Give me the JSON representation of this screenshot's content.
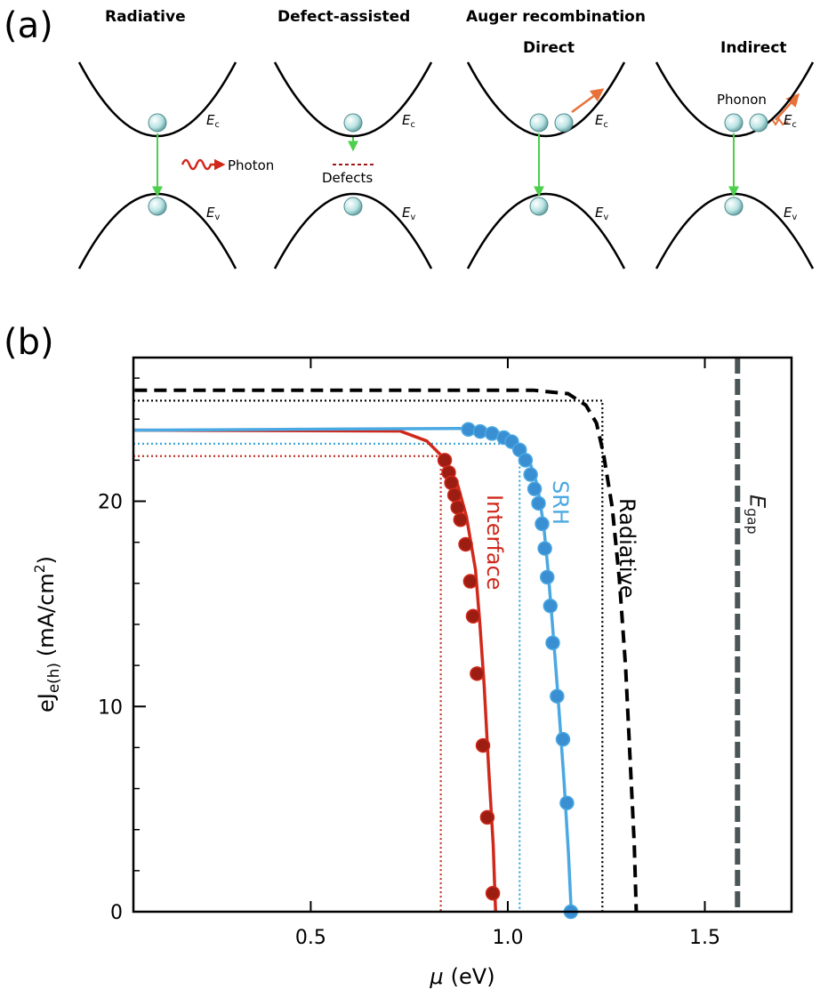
{
  "diagram": {
    "panel_label": "(a)",
    "titles": [
      {
        "text": "Radiative"
      },
      {
        "text": "Defect-assisted"
      },
      {
        "text": "Auger recombination"
      }
    ],
    "subtitles": [
      "Direct",
      "Indirect"
    ],
    "conduction": {
      "symbol": "E",
      "sub": "c"
    },
    "valence": {
      "symbol": "E",
      "sub": "v"
    },
    "photon": "Photon",
    "defects": "Defects",
    "phonon": "Phonon"
  },
  "chart_data": {
    "type": "line",
    "panel_label": "(b)",
    "x_label": {
      "symbol": "μ",
      "unit": "(eV)"
    },
    "y_label": {
      "main": "eJ",
      "sub": "e(h)",
      "unit": "(mA/cm",
      "sup": "2",
      "close": ")"
    },
    "xlim": [
      0.05,
      1.72
    ],
    "ylim": [
      0,
      27
    ],
    "xticks": [
      0.5,
      {
        "value": 1,
        "label": "1.0"
      },
      1.5
    ],
    "yticks": [
      0,
      10,
      20
    ],
    "yminor": [
      2,
      4,
      6,
      8,
      12,
      14,
      16,
      18,
      22,
      24,
      26
    ],
    "series": [
      {
        "name": "Interface",
        "color": "#d0291b",
        "marker_color": "#9c1d12",
        "style": "solid",
        "x": [
          0.053,
          0.727,
          0.794,
          0.839,
          0.873,
          0.895,
          0.918,
          0.929,
          0.94,
          0.951,
          0.963,
          0.969
        ],
        "values": [
          23.46,
          23.42,
          22.94,
          22.08,
          20.78,
          19.26,
          16.67,
          14.07,
          11.04,
          7.14,
          3.25,
          0
        ],
        "markers": {
          "x": [
            0.84,
            0.85,
            0.857,
            0.865,
            0.873,
            0.88,
            0.893,
            0.905,
            0.912,
            0.922,
            0.937,
            0.948,
            0.962
          ],
          "values": [
            22.0,
            21.4,
            20.9,
            20.3,
            19.7,
            19.1,
            17.9,
            16.1,
            14.4,
            11.6,
            8.1,
            4.6,
            0.9
          ]
        }
      },
      {
        "name": "SRH",
        "color": "#4aa8e2",
        "marker_color": "#3a8fd2",
        "style": "solid",
        "x": [
          0.053,
          0.907,
          0.974,
          1.019,
          1.053,
          1.075,
          1.091,
          1.102,
          1.113,
          1.127,
          1.143,
          1.154,
          1.161
        ],
        "values": [
          23.46,
          23.55,
          23.38,
          22.94,
          22.08,
          20.78,
          18.83,
          16.67,
          14.07,
          10.61,
          6.28,
          2.81,
          0
        ],
        "markers": {
          "x": [
            0.9,
            0.93,
            0.96,
            0.99,
            1.01,
            1.03,
            1.045,
            1.058,
            1.068,
            1.078,
            1.087,
            1.094,
            1.1,
            1.108,
            1.114,
            1.125,
            1.14,
            1.15,
            1.16
          ],
          "values": [
            23.5,
            23.4,
            23.3,
            23.1,
            22.9,
            22.5,
            22.0,
            21.3,
            20.6,
            19.9,
            18.9,
            17.7,
            16.3,
            14.9,
            13.1,
            10.5,
            8.4,
            5.3,
            0
          ]
        }
      },
      {
        "name": "Radiative",
        "color": "#000000",
        "style": "dashed",
        "x": [
          0.053,
          1.064,
          1.153,
          1.198,
          1.225,
          1.243,
          1.265,
          1.283,
          1.299,
          1.31,
          1.321,
          1.326
        ],
        "values": [
          25.41,
          25.41,
          25.24,
          24.68,
          23.81,
          22.29,
          19.7,
          16.23,
          11.9,
          7.58,
          3.25,
          0
        ]
      }
    ],
    "ref_lines": [
      {
        "x": 0.83,
        "y": 22.2,
        "color": "#c0392b"
      },
      {
        "x": 1.03,
        "y": 22.8,
        "color": "#3aa6d8"
      },
      {
        "x": 1.24,
        "y": 24.9,
        "color": "#000000"
      }
    ],
    "egap": {
      "symbol": "E",
      "sub": "gap",
      "x": 1.583,
      "color": "#4a5558"
    }
  }
}
